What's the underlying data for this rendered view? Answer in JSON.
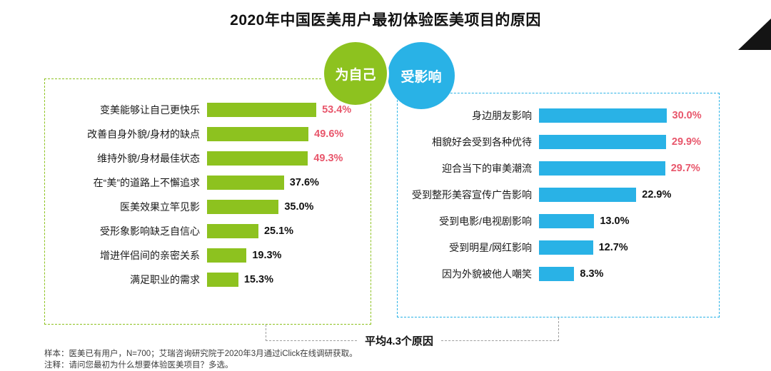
{
  "title": "2020年中国医美用户最初体验医美项目的原因",
  "panels": {
    "left": {
      "badge": "为自己",
      "color": "#8dc21f"
    },
    "right": {
      "badge": "受影响",
      "color": "#29b2e6"
    }
  },
  "average_note": "平均4.3个原因",
  "footnotes": [
    "样本：医美已有用户，N=700；艾瑞咨询研究院于2020年3月通过iClick在线调研获取。",
    "注释：请问您最初为什么想要体验医美项目？多选。"
  ],
  "chart_data": [
    {
      "type": "bar",
      "orientation": "horizontal",
      "title": "为自己",
      "categories": [
        "变美能够让自己更快乐",
        "改善自身外貌/身材的缺点",
        "维持外貌/身材最佳状态",
        "在“美”的道路上不懈追求",
        "医美效果立竿见影",
        "受形象影响缺乏自信心",
        "增进伴侣间的亲密关系",
        "满足职业的需求"
      ],
      "values": [
        53.4,
        49.6,
        49.3,
        37.6,
        35.0,
        25.1,
        19.3,
        15.3
      ],
      "value_suffix": "%",
      "xlim": [
        0,
        75
      ],
      "bar_color": "#8dc21f",
      "highlight_top": 3,
      "highlight_color": "#e8566b",
      "legend_position": "none",
      "grid": false
    },
    {
      "type": "bar",
      "orientation": "horizontal",
      "title": "受影响",
      "categories": [
        "身边朋友影响",
        "相貌好会受到各种优待",
        "迎合当下的审美潮流",
        "受到整形美容宣传广告影响",
        "受到电影/电视剧影响",
        "受到明星/网红影响",
        "因为外貌被他人嘲笑"
      ],
      "values": [
        30.0,
        29.9,
        29.7,
        22.9,
        13.0,
        12.7,
        8.3
      ],
      "value_suffix": "%",
      "xlim": [
        0,
        40
      ],
      "bar_color": "#29b2e6",
      "highlight_top": 3,
      "highlight_color": "#e8566b",
      "legend_position": "none",
      "grid": false
    }
  ]
}
